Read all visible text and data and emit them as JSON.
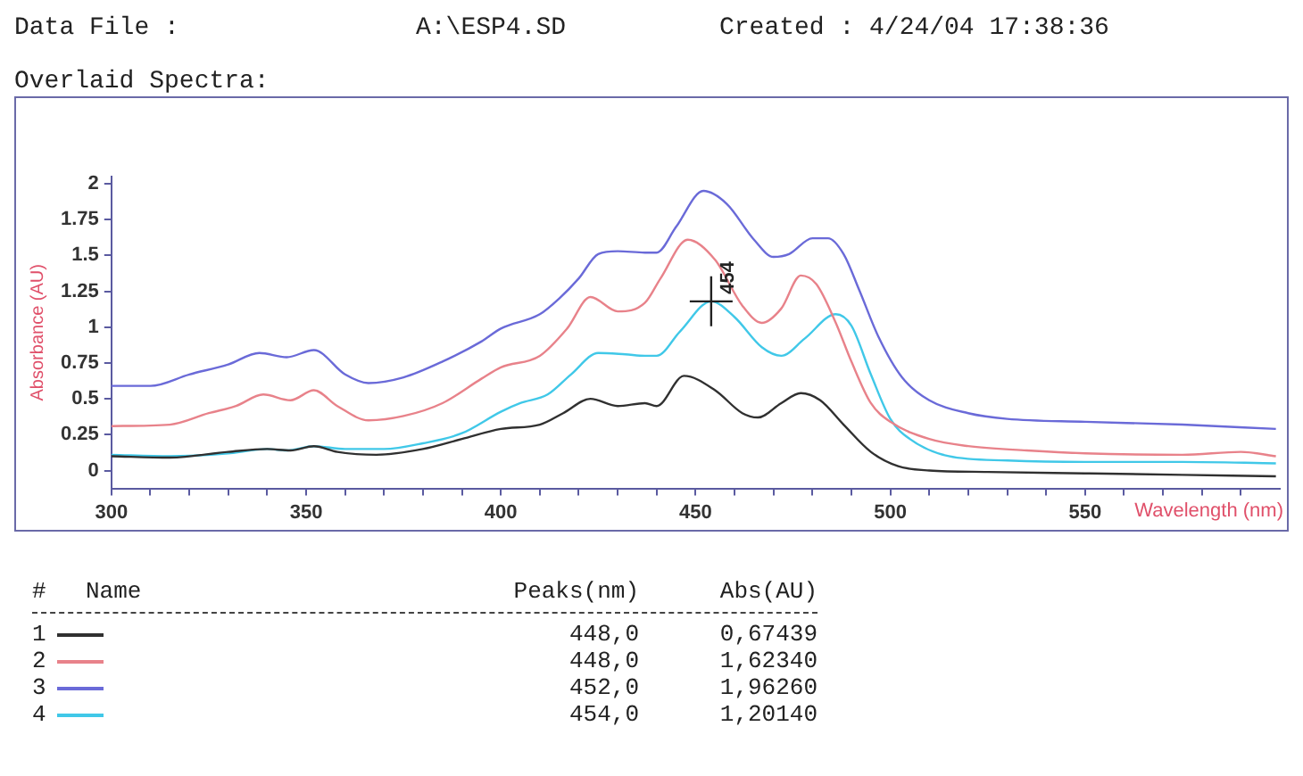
{
  "chart_data": {
    "type": "line",
    "title": "Overlaid Spectra:",
    "xlabel": "Wavelength (nm)",
    "ylabel": "Absorbance (AU)",
    "annotations": [
      "Data File   :",
      "A:\\ESP4.SD",
      "Created : 4/24/04 17:38:36",
      {
        "text": "454",
        "x": 454,
        "y": 1.18
      },
      "#",
      "Name",
      "Peaks(nm)",
      "Abs(AU)",
      "448,0",
      "0,67439",
      "448,0",
      "1,62340",
      "452,0",
      "1,96260",
      "454,0",
      "1,20140"
    ],
    "xlim": [
      300,
      600
    ],
    "ylim": [
      -0.125,
      2.05
    ],
    "xticks": [
      300,
      {
        "value": 310,
        "label": null
      },
      {
        "value": 320,
        "label": null
      },
      {
        "value": 330,
        "label": null
      },
      {
        "value": 340,
        "label": null
      },
      350,
      {
        "value": 360,
        "label": null
      },
      {
        "value": 370,
        "label": null
      },
      {
        "value": 380,
        "label": null
      },
      {
        "value": 390,
        "label": null
      },
      400,
      {
        "value": 410,
        "label": null
      },
      {
        "value": 420,
        "label": null
      },
      {
        "value": 430,
        "label": null
      },
      {
        "value": 440,
        "label": null
      },
      450,
      {
        "value": 460,
        "label": null
      },
      {
        "value": 470,
        "label": null
      },
      {
        "value": 480,
        "label": null
      },
      {
        "value": 490,
        "label": null
      },
      500,
      {
        "value": 510,
        "label": null
      },
      {
        "value": 520,
        "label": null
      },
      {
        "value": 530,
        "label": null
      },
      {
        "value": 540,
        "label": null
      },
      550,
      {
        "value": 560,
        "label": null
      },
      {
        "value": 570,
        "label": null
      },
      {
        "value": 580,
        "label": null
      },
      {
        "value": 590,
        "label": null
      }
    ],
    "yticks": [
      0,
      0.25,
      0.5,
      0.75,
      1,
      1.25,
      1.5,
      1.75,
      2
    ],
    "grid": false,
    "legend": "bottom",
    "marker": "none",
    "line_style": "solid",
    "series": [
      {
        "name": "1",
        "color": "#303030",
        "x": [
          300,
          315,
          330,
          340,
          346,
          352,
          358,
          368,
          380,
          390,
          400,
          410,
          416,
          423,
          430,
          437,
          440,
          447,
          455,
          462,
          466,
          472,
          477,
          482,
          488,
          495,
          502,
          510,
          525,
          550,
          575,
          599
        ],
        "values": [
          0.1,
          0.09,
          0.13,
          0.15,
          0.14,
          0.17,
          0.13,
          0.11,
          0.15,
          0.22,
          0.29,
          0.32,
          0.4,
          0.5,
          0.45,
          0.47,
          0.45,
          0.66,
          0.56,
          0.4,
          0.37,
          0.47,
          0.54,
          0.49,
          0.32,
          0.13,
          0.03,
          0,
          -0.01,
          -0.02,
          -0.03,
          -0.04
        ]
      },
      {
        "name": "2",
        "color": "#e8828a",
        "x": [
          300,
          315,
          325,
          332,
          339,
          346,
          352,
          358,
          366,
          375,
          385,
          395,
          400,
          410,
          417,
          423,
          430,
          437,
          441,
          448,
          455,
          462,
          467,
          472,
          477,
          481,
          486,
          490,
          495,
          500,
          510,
          520,
          535,
          550,
          575,
          590,
          599
        ],
        "values": [
          0.31,
          0.32,
          0.4,
          0.45,
          0.53,
          0.49,
          0.56,
          0.45,
          0.35,
          0.38,
          0.47,
          0.64,
          0.72,
          0.8,
          0.99,
          1.21,
          1.11,
          1.17,
          1.34,
          1.61,
          1.47,
          1.15,
          1.03,
          1.13,
          1.36,
          1.3,
          1.03,
          0.76,
          0.47,
          0.34,
          0.22,
          0.17,
          0.14,
          0.12,
          0.11,
          0.13,
          0.1
        ]
      },
      {
        "name": "3",
        "color": "#6a6ad8",
        "x": [
          300,
          310,
          320,
          330,
          338,
          345,
          352,
          360,
          366,
          375,
          385,
          395,
          400,
          410,
          415,
          420,
          425,
          430,
          437,
          440,
          445,
          452,
          458,
          465,
          470,
          474,
          480,
          484,
          488,
          492,
          497,
          503,
          510,
          520,
          530,
          550,
          575,
          599
        ],
        "values": [
          0.59,
          0.59,
          0.67,
          0.74,
          0.82,
          0.79,
          0.84,
          0.67,
          0.61,
          0.65,
          0.76,
          0.9,
          0.99,
          1.09,
          1.2,
          1.34,
          1.51,
          1.53,
          1.52,
          1.52,
          1.7,
          1.95,
          1.86,
          1.61,
          1.49,
          1.51,
          1.62,
          1.62,
          1.51,
          1.26,
          0.93,
          0.65,
          0.49,
          0.4,
          0.36,
          0.34,
          0.32,
          0.29
        ]
      },
      {
        "name": "4",
        "color": "#40c8e8",
        "x": [
          300,
          315,
          330,
          340,
          345,
          352,
          360,
          370,
          380,
          390,
          400,
          405,
          412,
          418,
          425,
          432,
          437,
          440,
          446,
          454,
          460,
          467,
          472,
          478,
          486,
          490,
          495,
          500,
          505,
          515,
          530,
          550,
          575,
          599
        ],
        "values": [
          0.11,
          0.1,
          0.12,
          0.15,
          0.14,
          0.17,
          0.15,
          0.15,
          0.19,
          0.26,
          0.41,
          0.47,
          0.53,
          0.67,
          0.82,
          0.81,
          0.8,
          0.8,
          0.97,
          1.18,
          1.07,
          0.86,
          0.8,
          0.92,
          1.09,
          1.01,
          0.67,
          0.36,
          0.22,
          0.1,
          0.07,
          0.06,
          0.06,
          0.05
        ]
      }
    ]
  }
}
